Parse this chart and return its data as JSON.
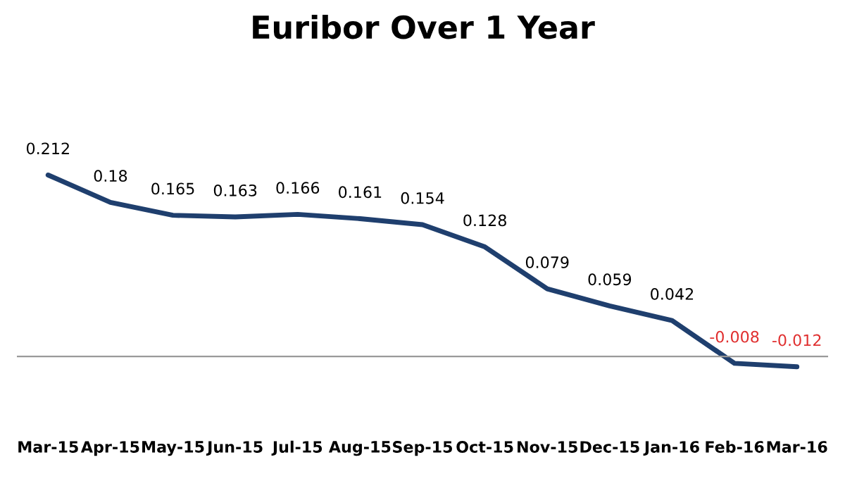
{
  "chart_data": {
    "type": "line",
    "title": "Euribor Over 1 Year",
    "categories": [
      "Mar-15",
      "Apr-15",
      "May-15",
      "Jun-15",
      "Jul-15",
      "Aug-15",
      "Sep-15",
      "Oct-15",
      "Nov-15",
      "Dec-15",
      "Jan-16",
      "Feb-16",
      "Mar-16"
    ],
    "series": [
      {
        "color": "#1f3f6e",
        "values": [
          0.212,
          0.18,
          0.165,
          0.163,
          0.166,
          0.161,
          0.154,
          0.128,
          0.079,
          0.059,
          0.042,
          -0.008,
          -0.012
        ]
      }
    ],
    "data_labels": true,
    "marker": "none",
    "line_style": "solid",
    "grid": false,
    "legend": false
  }
}
